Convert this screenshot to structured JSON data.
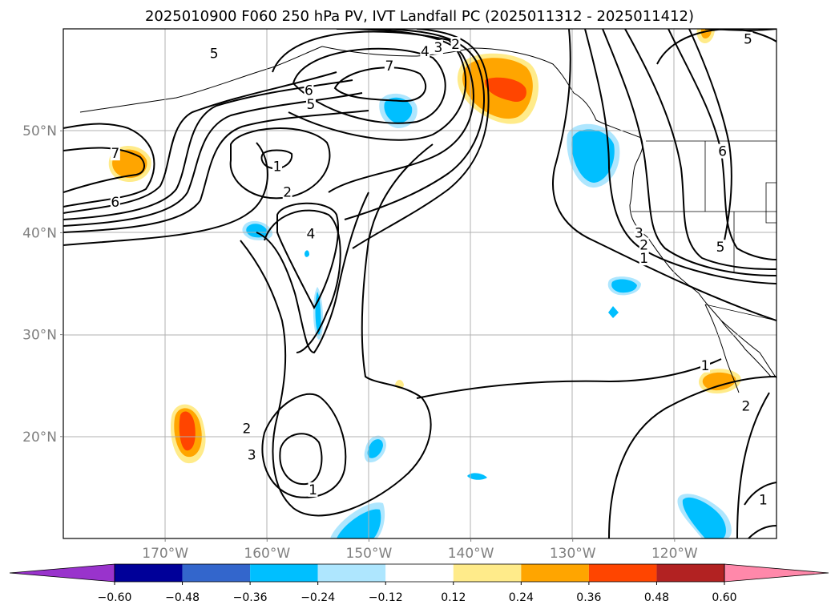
{
  "title": "2025010900 F060 250 hPa PV, IVT Landfall PC (2025011312 - 2025011412)",
  "map": {
    "lon_range": [
      -180,
      -110
    ],
    "lat_range": [
      10,
      60
    ],
    "x_ticks": [
      {
        "lon": -170,
        "label": "170°W"
      },
      {
        "lon": -160,
        "label": "160°W"
      },
      {
        "lon": -150,
        "label": "150°W"
      },
      {
        "lon": -140,
        "label": "140°W"
      },
      {
        "lon": -130,
        "label": "130°W"
      },
      {
        "lon": -120,
        "label": "120°W"
      }
    ],
    "y_ticks": [
      {
        "lat": 50,
        "label": "50°N"
      },
      {
        "lat": 40,
        "label": "40°N"
      },
      {
        "lat": 30,
        "label": "30°N"
      },
      {
        "lat": 20,
        "label": "20°N"
      }
    ],
    "pv_contour_labels": [
      {
        "text": "5",
        "lon": -165.2,
        "lat": 57.6
      },
      {
        "text": "7",
        "lon": -148.0,
        "lat": 56.4
      },
      {
        "text": "4",
        "lon": -144.5,
        "lat": 57.8
      },
      {
        "text": "3",
        "lon": -143.2,
        "lat": 58.2
      },
      {
        "text": "2",
        "lon": -141.5,
        "lat": 58.5
      },
      {
        "text": "6",
        "lon": -155.9,
        "lat": 54.0
      },
      {
        "text": "5",
        "lon": -155.7,
        "lat": 52.6
      },
      {
        "text": "7",
        "lon": -174.9,
        "lat": 47.8
      },
      {
        "text": "6",
        "lon": -174.9,
        "lat": 43.0
      },
      {
        "text": "1",
        "lon": -159.0,
        "lat": 46.5
      },
      {
        "text": "2",
        "lon": -158.0,
        "lat": 44.0
      },
      {
        "text": "4",
        "lon": -155.7,
        "lat": 39.9
      },
      {
        "text": "3",
        "lon": -161.5,
        "lat": 18.2
      },
      {
        "text": "2",
        "lon": -162.0,
        "lat": 20.8
      },
      {
        "text": "1",
        "lon": -155.5,
        "lat": 14.8
      },
      {
        "text": "5",
        "lon": -112.8,
        "lat": 59.0
      },
      {
        "text": "6",
        "lon": -115.3,
        "lat": 48.0
      },
      {
        "text": "3",
        "lon": -123.5,
        "lat": 40.0
      },
      {
        "text": "2",
        "lon": -123.0,
        "lat": 38.8
      },
      {
        "text": "1",
        "lon": -123.0,
        "lat": 37.5
      },
      {
        "text": "5",
        "lon": -115.5,
        "lat": 38.6
      },
      {
        "text": "1",
        "lon": -117.0,
        "lat": 27.0
      },
      {
        "text": "2",
        "lon": -113.0,
        "lat": 23.0
      },
      {
        "text": "1",
        "lon": -111.3,
        "lat": 13.8
      }
    ]
  },
  "colorbar": {
    "colors": [
      "#9933cc",
      "#000099",
      "#3366cc",
      "#00bfff",
      "#aee6fe",
      "#ffffff",
      "#ffeb8a",
      "#ffa500",
      "#ff4500",
      "#b22222",
      "#ff88aa"
    ],
    "labels": [
      "−0.60",
      "−0.48",
      "−0.36",
      "−0.24",
      "−0.12",
      "0.12",
      "0.24",
      "0.36",
      "0.48",
      "0.60"
    ]
  }
}
